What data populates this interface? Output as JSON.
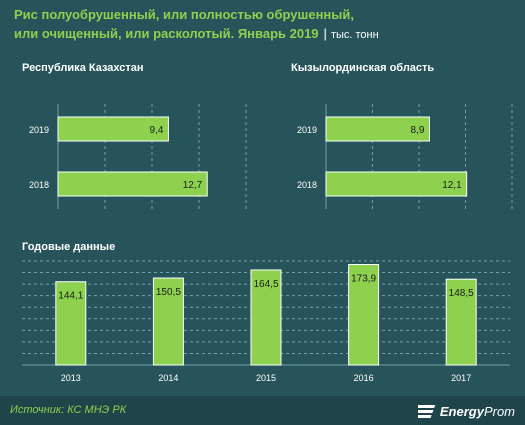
{
  "title_line1": "Рис полуобрушенный, или полностью обрушенный,",
  "title_line2": "или очищенный, или расколотый. Январь 2019",
  "title_sep": "|",
  "unit": "тыс. тонн",
  "colors": {
    "background": "#27545a",
    "bar": "#8dd14f",
    "bar_stroke": "#ffffff",
    "title": "#8dd14f",
    "text": "#ffffff",
    "grid": "#6fa1a6"
  },
  "chart_data": [
    {
      "type": "bar",
      "orientation": "horizontal",
      "title": "Республика  Казахстан",
      "categories": [
        "2019",
        "2018"
      ],
      "values": [
        9.4,
        12.7
      ],
      "value_labels": [
        "9,4",
        "12,7"
      ],
      "xlim": [
        0,
        16
      ],
      "grid": true
    },
    {
      "type": "bar",
      "orientation": "horizontal",
      "title": "Кызылординская  область",
      "categories": [
        "2019",
        "2018"
      ],
      "values": [
        8.9,
        12.1
      ],
      "value_labels": [
        "8,9",
        "12,1"
      ],
      "xlim": [
        0,
        16
      ],
      "grid": true
    },
    {
      "type": "bar",
      "orientation": "vertical",
      "title": "Годовые данные",
      "categories": [
        "2013",
        "2014",
        "2015",
        "2016",
        "2017"
      ],
      "values": [
        144.1,
        150.5,
        164.5,
        173.9,
        148.5
      ],
      "value_labels": [
        "144,1",
        "150,5",
        "164,5",
        "173,9",
        "148,5"
      ],
      "ylim": [
        0,
        180
      ],
      "grid": true
    }
  ],
  "source": "Источник: КС МНЭ РК",
  "logo": {
    "bold": "Energy",
    "normal": "Prom",
    "icon": "energyprom-logo-icon"
  }
}
